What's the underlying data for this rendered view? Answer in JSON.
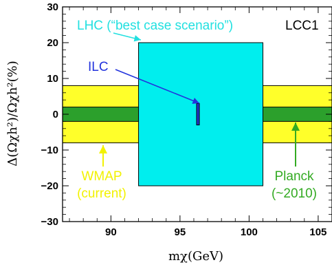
{
  "chart_data": {
    "type": "area",
    "title": "",
    "panel_label": "LCC1",
    "xlabel": "mχ(GeV)",
    "ylabel": "Δ(Ωχh²)/Ωχh²(%)",
    "xlim": [
      86.5,
      106
    ],
    "ylim": [
      -30,
      30
    ],
    "x_ticks": [
      90,
      95,
      100,
      105
    ],
    "y_ticks": [
      -30,
      -20,
      -10,
      0,
      10,
      20,
      30
    ],
    "x_tick_labels": [
      "90",
      "95",
      "100",
      "105"
    ],
    "y_tick_labels": [
      "−30",
      "−20",
      "−10",
      "0",
      "10",
      "20",
      "30"
    ],
    "grid": false,
    "series": [
      {
        "name": "WMAP (current)",
        "kind": "horizontal_band",
        "y_range": [
          -8,
          8
        ],
        "color": "#ffff2a"
      },
      {
        "name": "Planck (~2010)",
        "kind": "horizontal_band",
        "y_range": [
          -2,
          2
        ],
        "color": "#2ca02c"
      },
      {
        "name": "LHC (“best case scenario”)",
        "kind": "box",
        "x_range": [
          92,
          101
        ],
        "y_range": [
          -20,
          20
        ],
        "color": "#00eeee"
      },
      {
        "name": "ILC",
        "kind": "box",
        "x_range": [
          96.2,
          96.4
        ],
        "y_range": [
          -3,
          3
        ],
        "color": "#2233cc"
      }
    ],
    "annotations": {
      "lhc": "LHC (“best case scenario”)",
      "ilc": "ILC",
      "wmap_line1": "WMAP",
      "wmap_line2": "(current)",
      "planck_line1": "Planck",
      "planck_line2": "(~2010)"
    },
    "colors": {
      "wmap": "#ffff2a",
      "planck": "#2ca02c",
      "lhc": "#00eeee",
      "ilc": "#2233cc",
      "lhc_text": "#22e0e0",
      "wmap_text": "#f2f200",
      "planck_text": "#33aa22",
      "ilc_text": "#2233dd"
    }
  }
}
